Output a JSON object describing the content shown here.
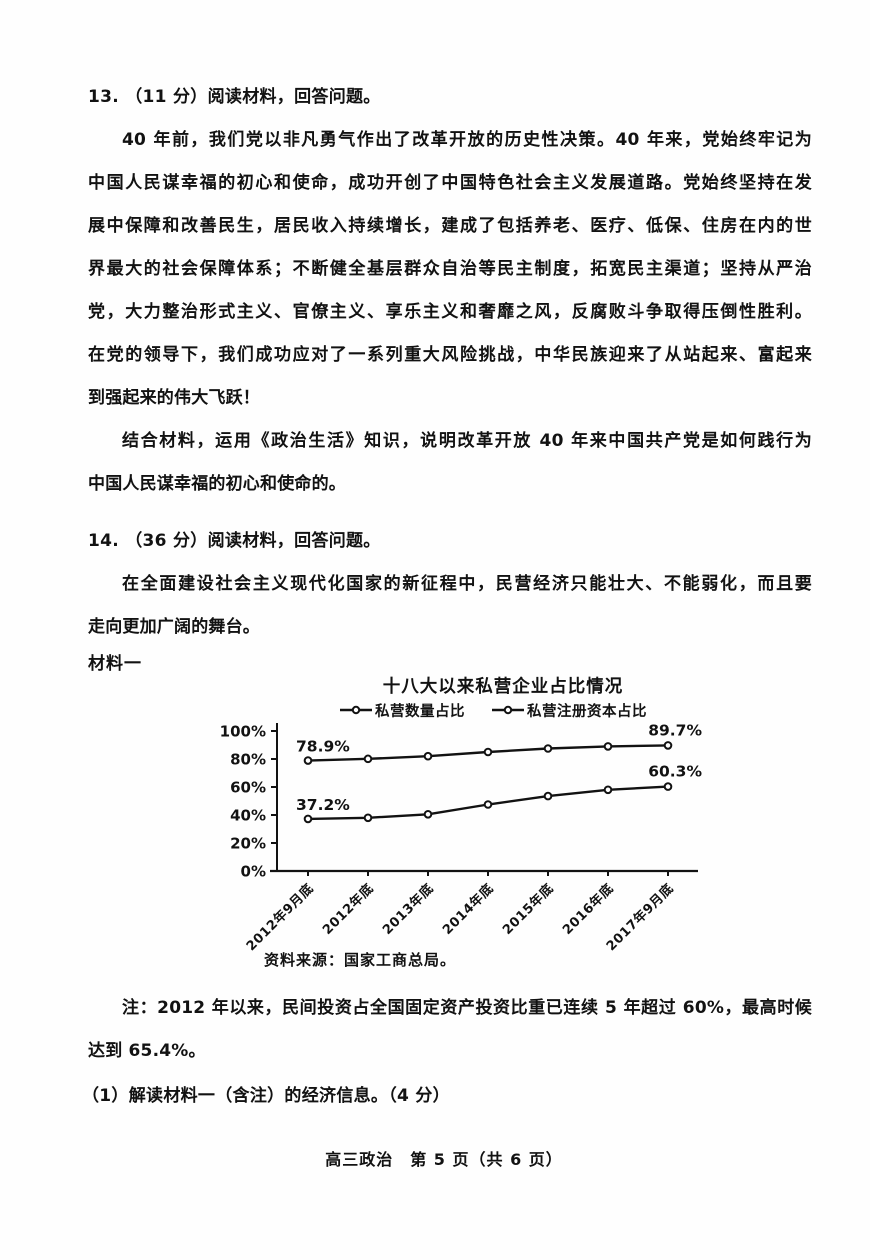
{
  "page": {
    "footer": "高三政治　第 5 页（共 6 页）"
  },
  "q13": {
    "heading": "13. （11 分）阅读材料，回答问题。",
    "para1_lines": [
      "40 年前，我们党以非凡勇气作出了改革开放的历史性决策。40 年来，党始终牢记为",
      "中国人民谋幸福的初心和使命，成功开创了中国特色社会主义发展道路。党始终坚持在发",
      "展中保障和改善民生，居民收入持续增长，建成了包括养老、医疗、低保、住房在内的世",
      "界最大的社会保障体系；不断健全基层群众自治等民主制度，拓宽民主渠道；坚持从严治",
      "党，大力整治形式主义、官僚主义、享乐主义和奢靡之风，反腐败斗争取得压倒性胜利。",
      "在党的领导下，我们成功应对了一系列重大风险挑战，中华民族迎来了从站起来、富起来",
      "到强起来的伟大飞跃！"
    ],
    "para2_lines": [
      "结合材料，运用《政治生活》知识，说明改革开放 40 年来中国共产党是如何践行为",
      "中国人民谋幸福的初心和使命的。"
    ]
  },
  "q14": {
    "heading": "14. （36 分）阅读材料，回答问题。",
    "intro_lines": [
      "在全面建设社会主义现代化国家的新征程中，民营经济只能壮大、不能弱化，而且要",
      "走向更加广阔的舞台。"
    ],
    "material_label": "材料一",
    "note_lines": [
      "注：2012 年以来，民间投资占全国固定资产投资比重已连续 5 年超过 60%，最高时候",
      "达到 65.4%。"
    ],
    "sub_question": "（1）解读材料一（含注）的经济信息。（4 分）"
  },
  "chart_data": {
    "type": "line",
    "title": "十八大以来私营企业占比情况",
    "source": "资料来源：国家工商总局。",
    "categories": [
      "2012年9月底",
      "2012年底",
      "2013年底",
      "2014年底",
      "2015年底",
      "2016年底",
      "2017年9月底"
    ],
    "series": [
      {
        "name": "私营数量占比",
        "values": [
          78.9,
          80.1,
          82.0,
          85.0,
          87.5,
          89.0,
          89.7
        ],
        "first_label": "78.9%",
        "last_label": "89.7%"
      },
      {
        "name": "私营注册资本占比",
        "values": [
          37.2,
          38.0,
          40.5,
          47.5,
          53.5,
          58.0,
          60.3
        ],
        "first_label": "37.2%",
        "last_label": "60.3%"
      }
    ],
    "ylim": [
      0,
      100
    ],
    "ytick_step": 20,
    "ytick_labels": [
      "0%",
      "20%",
      "40%",
      "60%",
      "80%",
      "100%"
    ],
    "legend_position": "top",
    "grid": false,
    "line_color": "#121212"
  }
}
